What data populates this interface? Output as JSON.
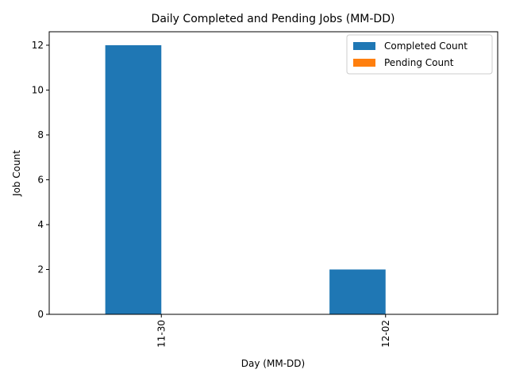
{
  "chart_data": {
    "type": "bar",
    "title": "Daily Completed and Pending Jobs (MM-DD)",
    "xlabel": "Day (MM-DD)",
    "ylabel": "Job Count",
    "categories": [
      "11-30",
      "12-02"
    ],
    "series": [
      {
        "name": "Completed Count",
        "values": [
          12,
          2
        ],
        "color": "#1f77b4"
      },
      {
        "name": "Pending Count",
        "values": [
          0,
          0
        ],
        "color": "#ff7f0e"
      }
    ],
    "ylim": [
      0,
      12.6
    ],
    "yticks": [
      0,
      2,
      4,
      6,
      8,
      10,
      12
    ],
    "grid": false,
    "legend_position": "top-right",
    "xtick_rotation": "vertical"
  }
}
